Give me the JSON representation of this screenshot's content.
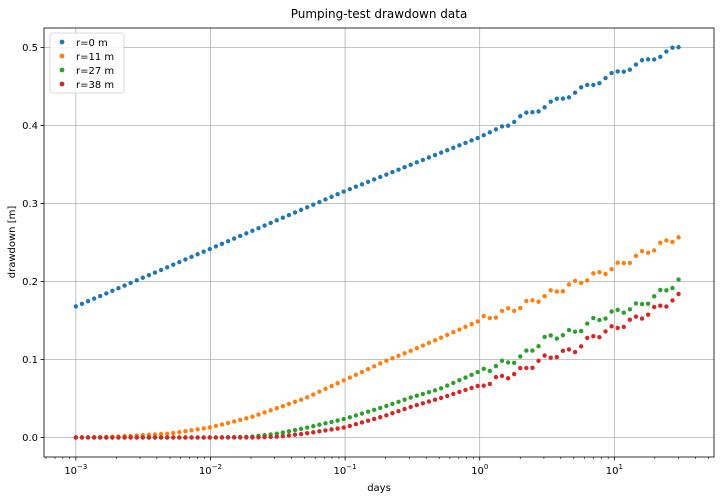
{
  "chart_data": {
    "type": "scatter",
    "title": "Pumping-test drawdown data",
    "xlabel": "days",
    "ylabel": "drawdown [m]",
    "x_scale": "log",
    "xlim": [
      0.00058,
      55
    ],
    "ylim": [
      -0.025,
      0.525
    ],
    "xticks": [
      0.001,
      0.01,
      0.1,
      1,
      10
    ],
    "xtick_labels": [
      {
        "base": "10",
        "exp": "−3"
      },
      {
        "base": "10",
        "exp": "−2"
      },
      {
        "base": "10",
        "exp": "−1"
      },
      {
        "base": "10",
        "exp": "0"
      },
      {
        "base": "10",
        "exp": "1"
      }
    ],
    "yticks": [
      0.0,
      0.1,
      0.2,
      0.3,
      0.4,
      0.5
    ],
    "ytick_labels": [
      "0.0",
      "0.1",
      "0.2",
      "0.3",
      "0.4",
      "0.5"
    ],
    "grid": true,
    "legend_position": "top-left",
    "x_range": [
      0.001,
      30
    ],
    "n_points": 100,
    "series": [
      {
        "name": "r=0 m",
        "color": "#1f77b4",
        "x_log10": [
          -3,
          -2,
          -1,
          0,
          0.3,
          0.6,
          1,
          1.477
        ],
        "y": [
          0.168,
          0.242,
          0.316,
          0.385,
          0.41,
          0.434,
          0.466,
          0.5
        ]
      },
      {
        "name": "r=11 m",
        "color": "#ff7f0e",
        "x_log10": [
          -3,
          -2.7,
          -2.3,
          -2,
          -1.7,
          -1.5,
          -1.3,
          -1,
          -0.7,
          -0.5,
          -0.3,
          0,
          0.3,
          0.6,
          1,
          1.477
        ],
        "y": [
          0.0,
          0.001,
          0.005,
          0.013,
          0.026,
          0.038,
          0.05,
          0.074,
          0.098,
          0.112,
          0.127,
          0.15,
          0.168,
          0.19,
          0.218,
          0.258
        ]
      },
      {
        "name": "r=27 m",
        "color": "#2ca02c",
        "x_log10": [
          -3,
          -2.3,
          -2,
          -1.7,
          -1.5,
          -1.3,
          -1,
          -0.7,
          -0.5,
          -0.3,
          0,
          0.3,
          0.5,
          0.7,
          0.85,
          1,
          1.2,
          1.477
        ],
        "y": [
          0.0,
          0.0,
          0.0,
          0.001,
          0.005,
          0.012,
          0.024,
          0.04,
          0.052,
          0.062,
          0.085,
          0.102,
          0.128,
          0.135,
          0.15,
          0.16,
          0.17,
          0.2
        ]
      },
      {
        "name": "r=38 m",
        "color": "#d62728",
        "x_log10": [
          -3,
          -2.3,
          -2,
          -1.7,
          -1.5,
          -1.3,
          -1,
          -0.7,
          -0.5,
          -0.3,
          0,
          0.3,
          0.5,
          0.7,
          0.85,
          1,
          1.2,
          1.477
        ],
        "y": [
          0.0,
          0.0,
          0.0,
          0.0,
          0.001,
          0.005,
          0.013,
          0.028,
          0.04,
          0.05,
          0.067,
          0.085,
          0.103,
          0.112,
          0.13,
          0.14,
          0.155,
          0.18
        ]
      }
    ]
  }
}
